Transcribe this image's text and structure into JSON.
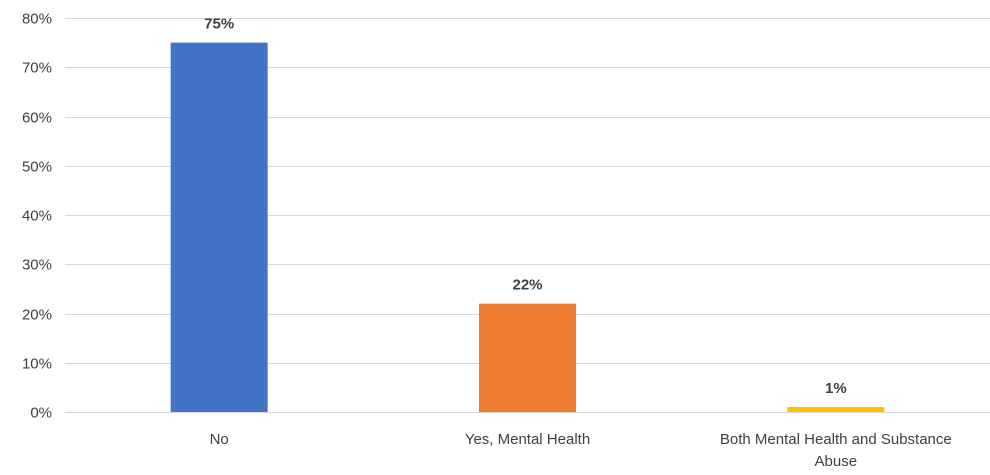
{
  "chart_data": {
    "type": "bar",
    "title": "",
    "xlabel": "",
    "ylabel": "",
    "categories": [
      "No",
      "Yes, Mental Health",
      "Both Mental Health and Substance Abuse"
    ],
    "category_label_lines": [
      [
        "No"
      ],
      [
        "Yes, Mental Health"
      ],
      [
        "Both Mental Health and Substance",
        "Abuse"
      ]
    ],
    "values": [
      75,
      22,
      1
    ],
    "data_labels": [
      "75%",
      "22%",
      "1%"
    ],
    "bar_colors": [
      "#4472c4",
      "#ed7d31",
      "#ffc000"
    ],
    "ylim": [
      0,
      80
    ],
    "yticks": [
      0,
      10,
      20,
      30,
      40,
      50,
      60,
      70,
      80
    ],
    "ytick_labels": [
      "0%",
      "10%",
      "20%",
      "30%",
      "40%",
      "50%",
      "60%",
      "70%",
      "80%"
    ],
    "grid": true,
    "legend": "none"
  }
}
